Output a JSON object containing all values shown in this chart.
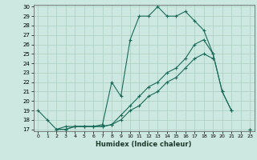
{
  "xlabel": "Humidex (Indice chaleur)",
  "bg_color": "#cde8e0",
  "grid_color": "#aacfbf",
  "line_color": "#1a6b5a",
  "ylim": [
    17,
    30
  ],
  "xlim": [
    -0.5,
    23.5
  ],
  "yticks": [
    17,
    18,
    19,
    20,
    21,
    22,
    23,
    24,
    25,
    26,
    27,
    28,
    29,
    30
  ],
  "xticks": [
    0,
    1,
    2,
    3,
    4,
    5,
    6,
    7,
    8,
    9,
    10,
    11,
    12,
    13,
    14,
    15,
    16,
    17,
    18,
    19,
    20,
    21,
    22,
    23
  ],
  "series": [
    {
      "x": [
        0,
        1,
        2,
        3,
        4,
        5,
        6,
        7,
        8,
        9,
        10,
        11,
        12,
        13,
        14,
        15,
        16,
        17,
        18,
        19,
        20,
        21
      ],
      "y": [
        19,
        18,
        17,
        17.3,
        17.3,
        17.3,
        17.3,
        17.5,
        22,
        20.5,
        26.5,
        29,
        29,
        30,
        29,
        29,
        29.5,
        28.5,
        27.5,
        25,
        21,
        19
      ]
    },
    {
      "x": [
        2,
        3,
        4,
        5,
        6,
        7,
        8,
        9,
        10,
        11,
        12,
        13,
        14,
        15,
        16,
        17,
        18,
        19,
        20,
        21,
        22,
        23
      ],
      "y": [
        17,
        17,
        17.3,
        17.3,
        17.3,
        17.3,
        17.5,
        18.5,
        19.5,
        20.5,
        21.5,
        22,
        23,
        23.5,
        24.5,
        26,
        26.5,
        25,
        21,
        19,
        null,
        17
      ]
    },
    {
      "x": [
        2,
        3,
        4,
        5,
        6,
        7,
        8,
        9,
        10,
        11,
        12,
        13,
        14,
        15,
        16,
        17,
        18,
        19,
        20,
        23
      ],
      "y": [
        17,
        17,
        17.3,
        17.3,
        17.3,
        17.3,
        17.5,
        18,
        19,
        19.5,
        20.5,
        21,
        22,
        22.5,
        23.5,
        24.5,
        25,
        24.5,
        null,
        17
      ]
    }
  ]
}
